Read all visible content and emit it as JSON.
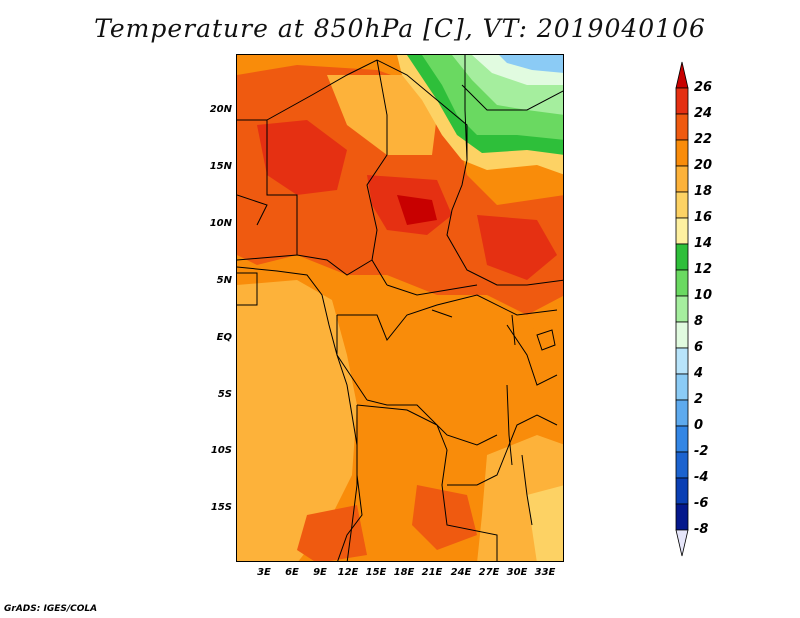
{
  "title": "Temperature at 850hPa [C], VT: 2019040106",
  "credit": "GrADS: IGES/COLA",
  "lat_labels": [
    "20N",
    "15N",
    "10N",
    "5N",
    "EQ",
    "5S",
    "10S",
    "15S"
  ],
  "lon_labels": [
    "3E",
    "6E",
    "9E",
    "12E",
    "15E",
    "18E",
    "21E",
    "24E",
    "27E",
    "30E",
    "33E"
  ],
  "colorbar": {
    "labels": [
      "26",
      "24",
      "22",
      "20",
      "18",
      "16",
      "14",
      "12",
      "10",
      "8",
      "6",
      "4",
      "2",
      "0",
      "-2",
      "-4",
      "-6",
      "-8"
    ],
    "colors": [
      "#c80000",
      "#e53012",
      "#ef5a10",
      "#f98c0a",
      "#fdb23a",
      "#fdd264",
      "#fef0a0",
      "#2ebf3a",
      "#6ad961",
      "#a5ee9e",
      "#e1fbe0",
      "#b8e4fb",
      "#8bcbf5",
      "#5eaaee",
      "#3386e5",
      "#1c63cf",
      "#0a3fb4",
      "#04188c",
      "#e6e6fa"
    ],
    "top_arrow_color": "#c80000",
    "bottom_arrow_color": "#e6e6fa"
  }
}
